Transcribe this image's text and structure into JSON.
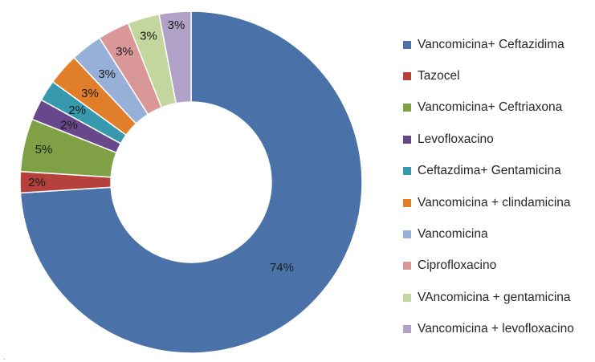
{
  "chart_data": {
    "type": "pie",
    "title": "",
    "slices": [
      {
        "label": "Vancomicina+ Ceftazidima",
        "value": 74,
        "value_label": "74%",
        "color": "#4a72a9"
      },
      {
        "label": "Tazocel",
        "value": 2,
        "value_label": "2%",
        "color": "#b5403c"
      },
      {
        "label": "Vancomicina+ Ceftriaxona",
        "value": 5,
        "value_label": "5%",
        "color": "#7fa044"
      },
      {
        "label": "Levofloxacino",
        "value": 2,
        "value_label": "2%",
        "color": "#67498b"
      },
      {
        "label": "Ceftazdima+ Gentamicina",
        "value": 2,
        "value_label": "2%",
        "color": "#3799ae"
      },
      {
        "label": "Vancomicina + clindamicina",
        "value": 3,
        "value_label": "3%",
        "color": "#e07e2a"
      },
      {
        "label": "Vancomicina",
        "value": 3,
        "value_label": "3%",
        "color": "#96b0d8"
      },
      {
        "label": "Ciprofloxacino",
        "value": 3,
        "value_label": "3%",
        "color": "#d99897"
      },
      {
        "label": "VAncomicina + gentamicina",
        "value": 3,
        "value_label": "3%",
        "color": "#c2d69d"
      },
      {
        "label": "Vancomicina + levofloxacino",
        "value": 3,
        "value_label": "3%",
        "color": "#b2a1c7"
      }
    ],
    "legend_position": "right",
    "donut": true
  },
  "footer_mark": "."
}
